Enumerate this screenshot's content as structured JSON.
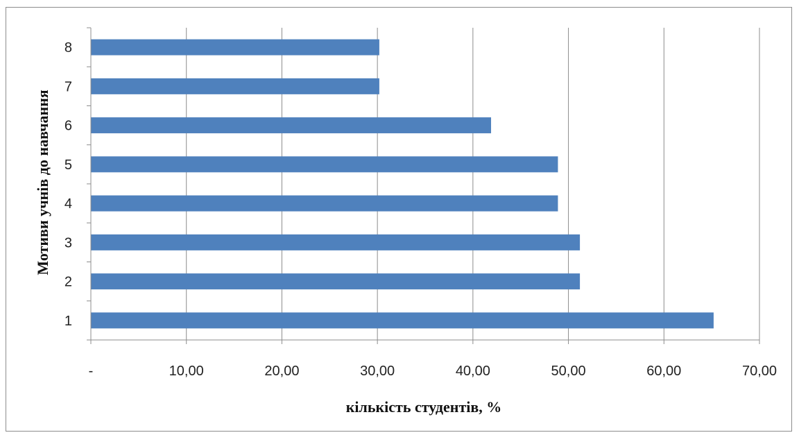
{
  "chart_data": {
    "type": "bar",
    "orientation": "horizontal",
    "categories": [
      "1",
      "2",
      "3",
      "4",
      "5",
      "6",
      "7",
      "8"
    ],
    "values": [
      65.2,
      51.2,
      51.2,
      48.9,
      48.9,
      41.9,
      30.2,
      30.2
    ],
    "xlabel": "кількість студентів, %",
    "ylabel": "Мотиви учнів до навчання",
    "xlim": [
      0,
      70
    ],
    "x_tick_labels": [
      "-",
      "10,00",
      "20,00",
      "30,00",
      "40,00",
      "50,00",
      "60,00",
      "70,00"
    ],
    "grid": "vertical",
    "legend": "none",
    "bar_color": "#4f81bd"
  }
}
